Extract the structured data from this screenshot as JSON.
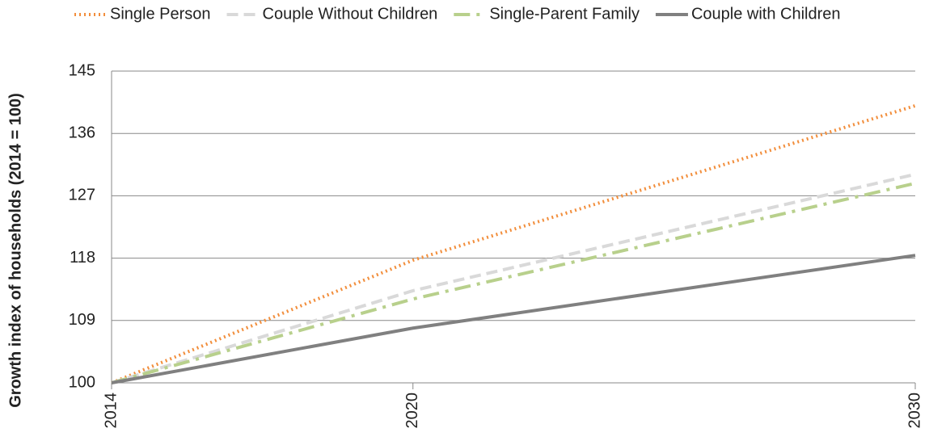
{
  "chart_data": {
    "type": "line",
    "y_label": "Growth index of households  (2014 = 100)",
    "x": [
      2014,
      2020,
      2030
    ],
    "xlim": [
      2014,
      2030
    ],
    "xticks": [
      2014,
      2020,
      2030
    ],
    "ylim": [
      100,
      145
    ],
    "yticks": [
      100,
      109,
      118,
      127,
      136,
      145
    ],
    "grid": true,
    "legend": "top",
    "series": [
      {
        "name": "Single Person",
        "color": "#f28e3c",
        "dash": "dotted",
        "values": [
          100,
          117.7,
          140
        ]
      },
      {
        "name": "Couple Without Children",
        "color": "#d9d9d9",
        "dash": "dashed",
        "values": [
          100,
          113.3,
          130.1
        ]
      },
      {
        "name": "Single-Parent Family",
        "color": "#b8d08c",
        "dash": "dash-dot",
        "values": [
          100,
          112.1,
          128.8
        ]
      },
      {
        "name": "Couple with Children",
        "color": "#808080",
        "dash": "solid",
        "values": [
          100,
          107.9,
          118.4
        ]
      }
    ]
  }
}
